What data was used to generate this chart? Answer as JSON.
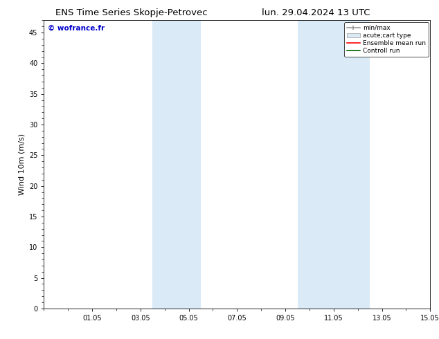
{
  "title_left": "ENS Time Series Skopje-Petrovec",
  "title_right": "lun. 29.04.2024 13 UTC",
  "ylabel": "Wind 10m (m/s)",
  "watermark": "© wofrance.fr",
  "xtick_labels": [
    "01.05",
    "03.05",
    "05.05",
    "07.05",
    "09.05",
    "11.05",
    "13.05",
    "15.05"
  ],
  "xtick_positions": [
    2,
    4,
    6,
    8,
    10,
    12,
    14,
    16
  ],
  "ylim": [
    0,
    47
  ],
  "ytick_positions": [
    0,
    5,
    10,
    15,
    20,
    25,
    30,
    35,
    40,
    45
  ],
  "ytick_labels": [
    "0",
    "5",
    "10",
    "15",
    "20",
    "25",
    "30",
    "35",
    "40",
    "45"
  ],
  "shaded_regions": [
    {
      "x_start": 4.5,
      "x_end": 6.5
    },
    {
      "x_start": 10.5,
      "x_end": 13.5
    }
  ],
  "shade_color": "#daeaf6",
  "legend_labels": [
    "min/max",
    "acute;cart type",
    "Ensemble mean run",
    "Controll run"
  ],
  "background_color": "#ffffff",
  "plot_bg_color": "#ffffff",
  "title_fontsize": 9.5,
  "label_fontsize": 8,
  "tick_fontsize": 7,
  "watermark_color": "#0000cc",
  "watermark_fontsize": 7.5
}
